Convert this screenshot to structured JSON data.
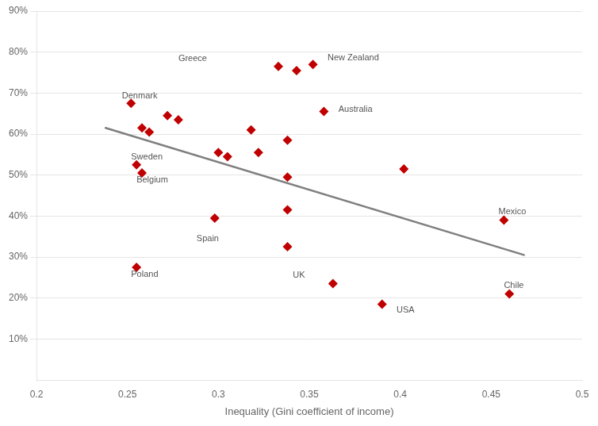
{
  "chart_data": {
    "type": "scatter",
    "xlabel": "Inequality (Gini coefficient of income)",
    "series": [
      {
        "type": "scatter",
        "color": "#c00000",
        "marker": "diamond",
        "x": [
          0.252,
          0.258,
          0.262,
          0.255,
          0.258,
          0.255,
          0.272,
          0.278,
          0.3,
          0.305,
          0.298,
          0.318,
          0.322,
          0.333,
          0.343,
          0.338,
          0.338,
          0.338,
          0.338,
          0.352,
          0.358,
          0.363,
          0.39,
          0.402,
          0.457,
          0.46
        ],
        "values": [
          0.675,
          0.615,
          0.605,
          0.525,
          0.505,
          0.275,
          0.645,
          0.635,
          0.555,
          0.545,
          0.395,
          0.61,
          0.555,
          0.765,
          0.755,
          0.585,
          0.495,
          0.415,
          0.325,
          0.77,
          0.655,
          0.235,
          0.185,
          0.515,
          0.39,
          0.21
        ]
      },
      {
        "type": "line",
        "color": "#7f7f7f",
        "x": [
          0.238,
          0.468
        ],
        "values": [
          0.615,
          0.305
        ]
      }
    ],
    "annotations": [
      {
        "text": "Denmark",
        "x": 0.247,
        "y": 0.683
      },
      {
        "text": "Sweden",
        "x": 0.252,
        "y": 0.533
      },
      {
        "text": "Belgium",
        "x": 0.255,
        "y": 0.477
      },
      {
        "text": "Poland",
        "x": 0.252,
        "y": 0.247
      },
      {
        "text": "Greece",
        "x": 0.278,
        "y": 0.773
      },
      {
        "text": "Spain",
        "x": 0.288,
        "y": 0.333
      },
      {
        "text": "New Zealand",
        "x": 0.36,
        "y": 0.775
      },
      {
        "text": "Australia",
        "x": 0.366,
        "y": 0.65
      },
      {
        "text": "UK",
        "x": 0.341,
        "y": 0.245
      },
      {
        "text": "USA",
        "x": 0.398,
        "y": 0.16
      },
      {
        "text": "Mexico",
        "x": 0.454,
        "y": 0.4
      },
      {
        "text": "Chile",
        "x": 0.457,
        "y": 0.22
      }
    ],
    "xlim": [
      0.2,
      0.5
    ],
    "ylim": [
      0.0,
      0.9
    ],
    "xticks": [
      0.2,
      0.25,
      0.3,
      0.35,
      0.4,
      0.45,
      0.5
    ],
    "yticks": [
      {
        "value": 0.1,
        "label": "10%"
      },
      {
        "value": 0.2,
        "label": "20%"
      },
      {
        "value": 0.3,
        "label": "30%"
      },
      {
        "value": 0.4,
        "label": "40%"
      },
      {
        "value": 0.5,
        "label": "50%"
      },
      {
        "value": 0.6,
        "label": "60%"
      },
      {
        "value": 0.7,
        "label": "70%"
      },
      {
        "value": 0.8,
        "label": "80%"
      },
      {
        "value": 0.9,
        "label": "90%"
      }
    ],
    "grid": "y"
  }
}
